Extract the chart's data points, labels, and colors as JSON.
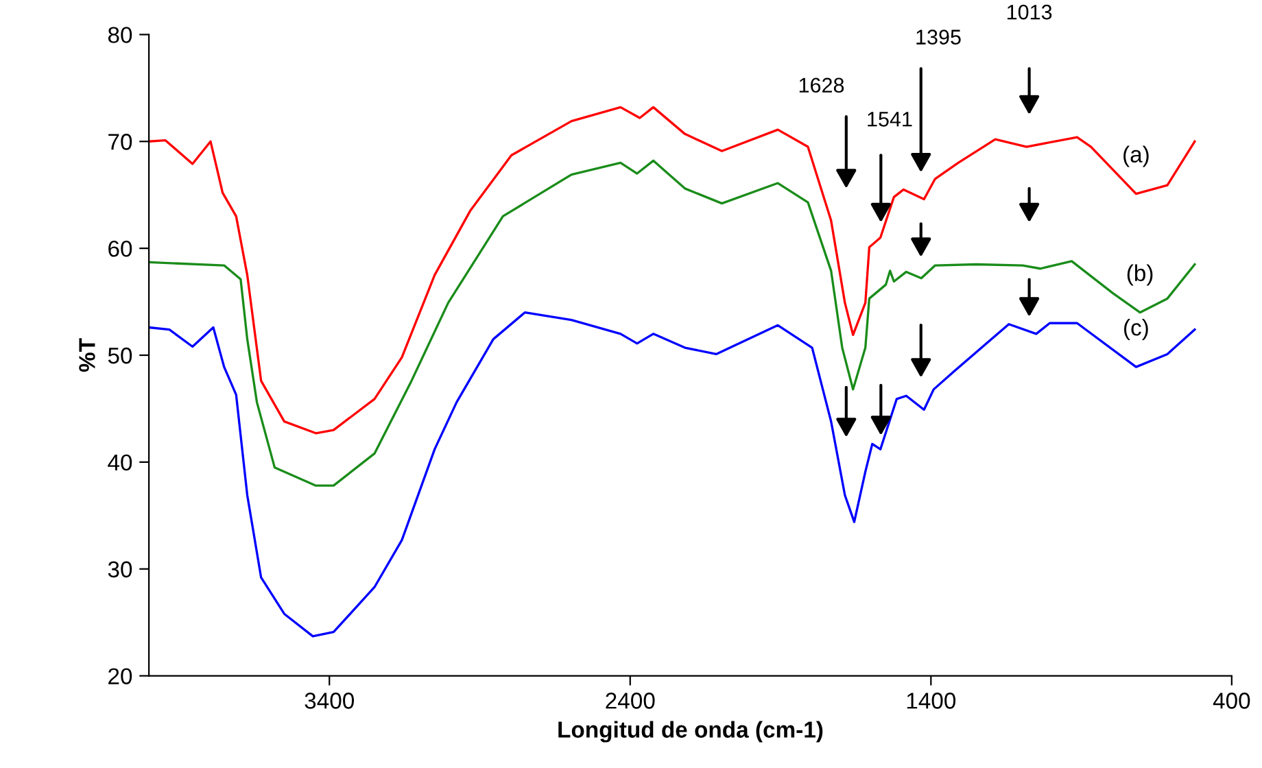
{
  "chart_data": {
    "type": "line",
    "xlabel": "Longitud de onda (cm-1)",
    "ylabel": "%T",
    "xlim": [
      4000,
      400
    ],
    "xticks": [
      3400,
      2400,
      1400,
      400
    ],
    "ylim": [
      20,
      80
    ],
    "yticks": [
      20,
      30,
      40,
      50,
      60,
      70,
      80
    ],
    "grid": false,
    "legend": false,
    "marker": "none",
    "line_style": "solid",
    "series": [
      {
        "name": "(a)",
        "color": "#ff0000",
        "x": [
          4000,
          3945,
          3855,
          3795,
          3755,
          3710,
          3673,
          3627,
          3550,
          3445,
          3386,
          3250,
          3159,
          3050,
          2932,
          2795,
          2595,
          2432,
          2368,
          2323,
          2218,
          2095,
          1909,
          1809,
          1732,
          1686,
          1659,
          1618,
          1605,
          1568,
          1523,
          1491,
          1423,
          1386,
          1309,
          1186,
          1082,
          914,
          868,
          718,
          614,
          523
        ],
        "values": [
          70.0,
          70.1,
          67.9,
          70.0,
          65.2,
          63.0,
          57.5,
          47.6,
          43.8,
          42.7,
          43.0,
          45.9,
          49.8,
          57.5,
          63.5,
          68.7,
          71.9,
          73.2,
          72.2,
          73.2,
          70.7,
          69.1,
          71.1,
          69.5,
          62.6,
          54.9,
          51.9,
          54.9,
          60.1,
          61.0,
          64.8,
          65.5,
          64.6,
          66.5,
          68.0,
          70.2,
          69.5,
          70.4,
          69.5,
          65.1,
          65.9,
          70.0
        ]
      },
      {
        "name": "(b)",
        "color": "#1a8c1a",
        "x": [
          4000,
          3750,
          3695,
          3673,
          3641,
          3582,
          3445,
          3386,
          3250,
          3127,
          3005,
          2823,
          2595,
          2432,
          2377,
          2323,
          2218,
          2095,
          1909,
          1809,
          1732,
          1695,
          1659,
          1618,
          1605,
          1550,
          1536,
          1523,
          1482,
          1432,
          1386,
          1250,
          1095,
          1036,
          932,
          795,
          705,
          614,
          523
        ],
        "values": [
          58.7,
          58.4,
          57.1,
          51.5,
          45.6,
          39.5,
          37.8,
          37.8,
          40.8,
          47.6,
          54.9,
          63.0,
          66.9,
          68.0,
          67.0,
          68.2,
          65.6,
          64.2,
          66.1,
          64.3,
          57.9,
          50.7,
          46.8,
          50.7,
          55.3,
          56.6,
          57.9,
          56.9,
          57.8,
          57.2,
          58.4,
          58.5,
          58.4,
          58.1,
          58.8,
          55.8,
          54.0,
          55.3,
          58.5
        ]
      },
      {
        "name": "(c)",
        "color": "#0000ff",
        "x": [
          4000,
          3932,
          3855,
          3786,
          3750,
          3710,
          3673,
          3627,
          3550,
          3455,
          3386,
          3250,
          3159,
          3050,
          2977,
          2855,
          2750,
          2595,
          2432,
          2377,
          2323,
          2218,
          2114,
          1909,
          1795,
          1732,
          1686,
          1655,
          1618,
          1595,
          1568,
          1514,
          1482,
          1423,
          1391,
          1323,
          1141,
          1050,
          1005,
          914,
          718,
          614,
          523
        ],
        "values": [
          52.6,
          52.4,
          50.8,
          52.6,
          48.9,
          46.3,
          36.9,
          29.2,
          25.8,
          23.7,
          24.1,
          28.3,
          32.7,
          41.2,
          45.6,
          51.5,
          54.0,
          53.3,
          52.0,
          51.1,
          52.0,
          50.7,
          50.1,
          52.8,
          50.7,
          43.8,
          36.9,
          34.4,
          39.1,
          41.7,
          41.2,
          45.9,
          46.2,
          44.9,
          46.8,
          48.5,
          52.9,
          52.0,
          53.0,
          53.0,
          48.9,
          50.1,
          52.4
        ]
      }
    ],
    "annotations": [
      "1628",
      "1541",
      "1395",
      "1013"
    ]
  }
}
